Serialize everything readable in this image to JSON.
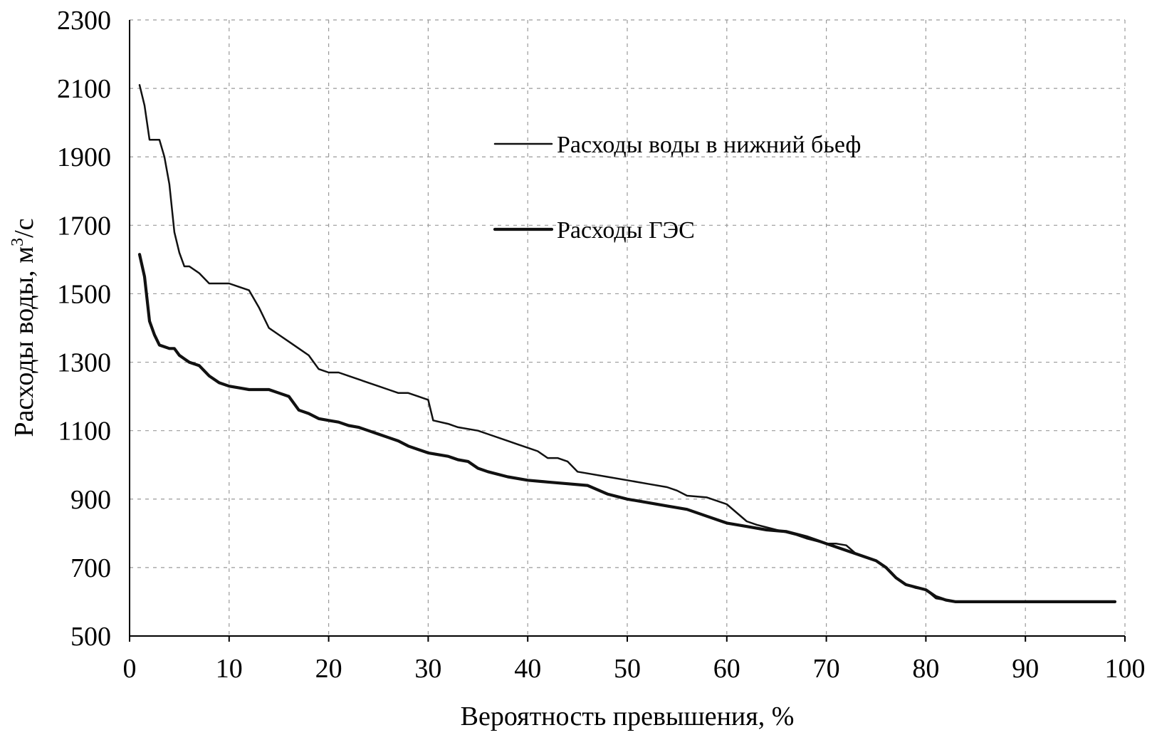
{
  "chart_data": {
    "type": "line",
    "title": "",
    "xlabel": "Вероятность превышения, %",
    "ylabel": "Расходы воды, м³/с",
    "ylabel_parts": {
      "before": "Расходы воды, м",
      "sup": "3",
      "after": "/с"
    },
    "xlim": [
      0,
      100
    ],
    "ylim": [
      500,
      2300
    ],
    "x_ticks": [
      0,
      10,
      20,
      30,
      40,
      50,
      60,
      70,
      80,
      90,
      100
    ],
    "y_ticks": [
      500,
      700,
      900,
      1100,
      1300,
      1500,
      1700,
      1900,
      2100,
      2300
    ],
    "grid": true,
    "legend_position": "upper-middle",
    "series": [
      {
        "name": "Расходы воды в нижний бьеф",
        "x": [
          1,
          1.5,
          2,
          2.5,
          3,
          3.5,
          4,
          4.5,
          5,
          5.5,
          6,
          7,
          8,
          9,
          10,
          11,
          12,
          13,
          14,
          15,
          16,
          17,
          18,
          19,
          20,
          21,
          22,
          23,
          24,
          25,
          26,
          27,
          28,
          29,
          30,
          30.5,
          32,
          33,
          35,
          36,
          38,
          39,
          40,
          41,
          42,
          43,
          44,
          45,
          46,
          48,
          50,
          52,
          54,
          55,
          56,
          58,
          59,
          60,
          61,
          62,
          63,
          65,
          67,
          68,
          70,
          71,
          72,
          73,
          74,
          75,
          76,
          77,
          78,
          79,
          80,
          81,
          82,
          83,
          85,
          90,
          95,
          99
        ],
        "y": [
          2110,
          2050,
          1950,
          1950,
          1950,
          1900,
          1820,
          1680,
          1620,
          1580,
          1580,
          1560,
          1530,
          1530,
          1530,
          1520,
          1510,
          1460,
          1400,
          1380,
          1360,
          1340,
          1320,
          1280,
          1270,
          1270,
          1260,
          1250,
          1240,
          1230,
          1220,
          1210,
          1210,
          1200,
          1190,
          1130,
          1120,
          1110,
          1100,
          1090,
          1070,
          1060,
          1050,
          1040,
          1020,
          1020,
          1010,
          980,
          975,
          965,
          955,
          945,
          935,
          925,
          910,
          905,
          895,
          885,
          860,
          835,
          825,
          810,
          795,
          785,
          770,
          770,
          765,
          740,
          730,
          720,
          700,
          670,
          650,
          640,
          635,
          610,
          605,
          600,
          600,
          600,
          600,
          600
        ]
      },
      {
        "name": "Расходы ГЭС",
        "x": [
          1,
          1.5,
          2,
          2.5,
          3,
          3.5,
          4,
          4.5,
          5,
          5.5,
          6,
          7,
          8,
          9,
          10,
          11,
          12,
          13,
          14,
          15,
          16,
          17,
          18,
          19,
          20,
          21,
          22,
          23,
          24,
          25,
          26,
          27,
          28,
          29,
          30,
          31,
          32,
          33,
          34,
          35,
          36,
          38,
          40,
          42,
          44,
          46,
          48,
          50,
          52,
          54,
          56,
          58,
          60,
          62,
          64,
          66,
          68,
          70,
          72,
          74,
          75,
          76,
          77,
          78,
          80,
          81,
          82,
          83,
          85,
          90,
          95,
          99
        ],
        "y": [
          1615,
          1550,
          1420,
          1380,
          1350,
          1345,
          1340,
          1340,
          1320,
          1310,
          1300,
          1290,
          1260,
          1240,
          1230,
          1225,
          1220,
          1220,
          1220,
          1210,
          1200,
          1160,
          1150,
          1135,
          1130,
          1125,
          1115,
          1110,
          1100,
          1090,
          1080,
          1070,
          1055,
          1045,
          1035,
          1030,
          1025,
          1015,
          1010,
          990,
          980,
          965,
          955,
          950,
          945,
          940,
          915,
          900,
          890,
          880,
          870,
          850,
          830,
          820,
          810,
          805,
          790,
          770,
          750,
          730,
          720,
          700,
          670,
          650,
          635,
          615,
          605,
          600,
          600,
          600,
          600,
          600
        ]
      }
    ]
  }
}
